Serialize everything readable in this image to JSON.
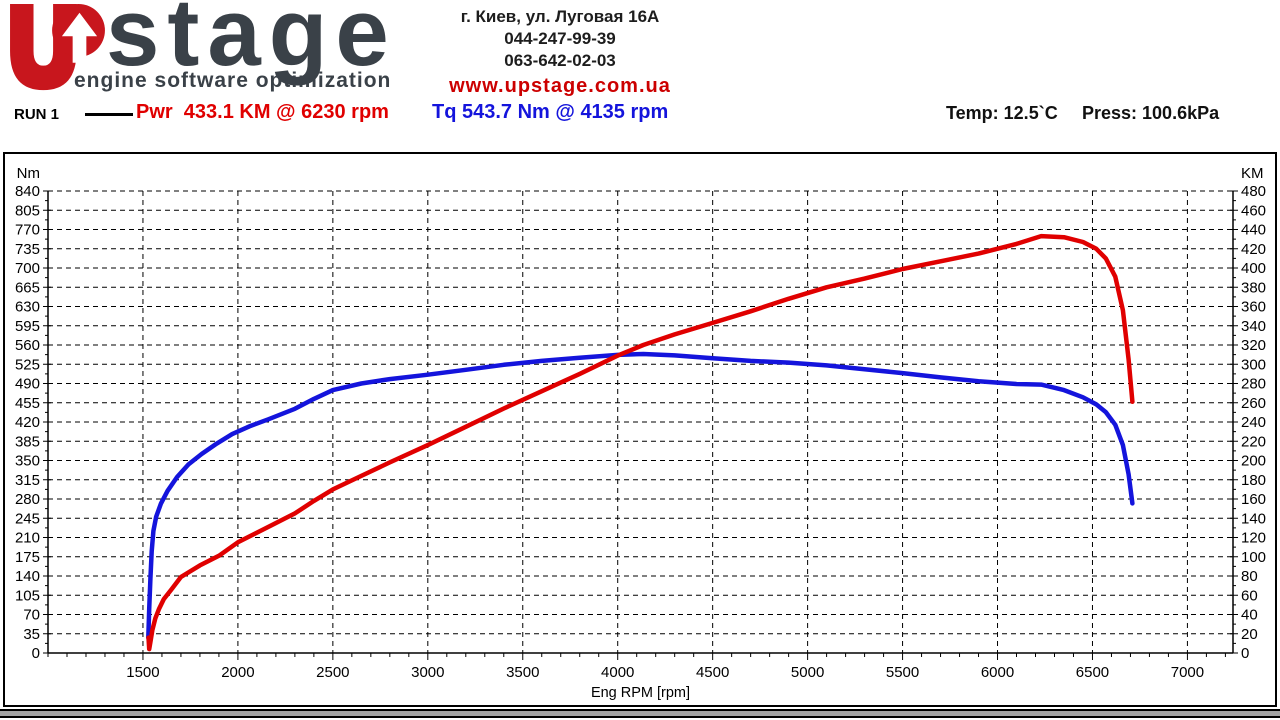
{
  "header": {
    "logo_stage": "stage",
    "logo_subtitle": "engine software optimization",
    "address_line": "г. Киев, ул. Луговая 16А",
    "phone1": "044-247-99-39",
    "phone2": "063-642-02-03",
    "website": "www.upstage.com.ua"
  },
  "legend": {
    "run_label": "RUN 1",
    "power_readout": "Pwr  433.1 KM @ 6230 rpm",
    "torque_readout": "Tq 543.7 Nm @ 4135 rpm",
    "temp_readout": "Temp: 12.5`C",
    "press_readout": "Press: 100.6kPa"
  },
  "colors": {
    "curve_red": "#e00000",
    "curve_blue": "#1414dc",
    "logo_red": "#c8161d",
    "logo_dark": "#3a4148",
    "website_red": "#cc0000",
    "strip_gray": "#a3a3a3"
  },
  "chart_data": {
    "type": "line",
    "grid": "dashed",
    "x_axis": {
      "label": "Eng RPM [rpm]",
      "min": 1000,
      "max": 7240,
      "major_ticks": [
        1500,
        2000,
        2500,
        3000,
        3500,
        4000,
        4500,
        5000,
        5500,
        6000,
        6500,
        7000
      ],
      "minor_tick_step": 100
    },
    "y_left_axis": {
      "label": "Nm",
      "min": 0,
      "max": 840,
      "major_tick_step": 35,
      "minor_tick_step": 17.5
    },
    "y_right_axis": {
      "label": "KM",
      "min": 0,
      "max": 480,
      "major_tick_step": 20,
      "minor_tick_step": 10
    },
    "peaks": {
      "power": {
        "value": 433.1,
        "unit": "KM",
        "rpm": 6230
      },
      "torque": {
        "value": 543.7,
        "unit": "Nm",
        "rpm": 4135
      }
    },
    "conditions": {
      "temperature_c": 12.5,
      "pressure_kpa": 100.6
    },
    "run": "RUN 1",
    "series": [
      {
        "name": "Torque",
        "axis": "left",
        "unit": "Nm",
        "color": "#1414dc",
        "points": [
          [
            1528,
            28
          ],
          [
            1533,
            80
          ],
          [
            1539,
            135
          ],
          [
            1546,
            185
          ],
          [
            1555,
            222
          ],
          [
            1570,
            248
          ],
          [
            1595,
            272
          ],
          [
            1630,
            295
          ],
          [
            1680,
            320
          ],
          [
            1740,
            343
          ],
          [
            1810,
            362
          ],
          [
            1890,
            381
          ],
          [
            1970,
            398
          ],
          [
            2060,
            412
          ],
          [
            2160,
            425
          ],
          [
            2300,
            444
          ],
          [
            2400,
            462
          ],
          [
            2500,
            478
          ],
          [
            2650,
            490
          ],
          [
            2800,
            498
          ],
          [
            3000,
            506
          ],
          [
            3200,
            515
          ],
          [
            3400,
            524
          ],
          [
            3600,
            531
          ],
          [
            3800,
            537
          ],
          [
            4000,
            542
          ],
          [
            4135,
            543.7
          ],
          [
            4300,
            541
          ],
          [
            4500,
            536
          ],
          [
            4700,
            531
          ],
          [
            4900,
            528
          ],
          [
            5100,
            523
          ],
          [
            5300,
            516
          ],
          [
            5500,
            509
          ],
          [
            5700,
            501
          ],
          [
            5900,
            494
          ],
          [
            6100,
            489
          ],
          [
            6230,
            488
          ],
          [
            6350,
            478
          ],
          [
            6450,
            465
          ],
          [
            6520,
            452
          ],
          [
            6570,
            438
          ],
          [
            6620,
            415
          ],
          [
            6660,
            378
          ],
          [
            6690,
            325
          ],
          [
            6710,
            272
          ]
        ]
      },
      {
        "name": "Power",
        "axis": "right",
        "unit": "KM",
        "color": "#e00000",
        "points": [
          [
            1529,
            16
          ],
          [
            1533,
            4
          ],
          [
            1540,
            12
          ],
          [
            1550,
            24
          ],
          [
            1565,
            36
          ],
          [
            1585,
            46
          ],
          [
            1610,
            56
          ],
          [
            1650,
            66
          ],
          [
            1700,
            79
          ],
          [
            1800,
            91
          ],
          [
            1900,
            101
          ],
          [
            2000,
            115
          ],
          [
            2150,
            130
          ],
          [
            2300,
            145
          ],
          [
            2400,
            158
          ],
          [
            2500,
            170
          ],
          [
            2650,
            184
          ],
          [
            2800,
            198
          ],
          [
            3000,
            216
          ],
          [
            3200,
            235
          ],
          [
            3400,
            254
          ],
          [
            3600,
            272
          ],
          [
            3800,
            290
          ],
          [
            4000,
            309
          ],
          [
            4135,
            320
          ],
          [
            4300,
            331
          ],
          [
            4500,
            343
          ],
          [
            4700,
            355
          ],
          [
            4900,
            368
          ],
          [
            5100,
            380
          ],
          [
            5300,
            389
          ],
          [
            5500,
            399
          ],
          [
            5700,
            407
          ],
          [
            5900,
            415
          ],
          [
            6100,
            425
          ],
          [
            6230,
            433.1
          ],
          [
            6350,
            432
          ],
          [
            6450,
            427
          ],
          [
            6520,
            420
          ],
          [
            6570,
            410
          ],
          [
            6620,
            391
          ],
          [
            6660,
            356
          ],
          [
            6690,
            305
          ],
          [
            6710,
            261
          ]
        ]
      }
    ]
  }
}
